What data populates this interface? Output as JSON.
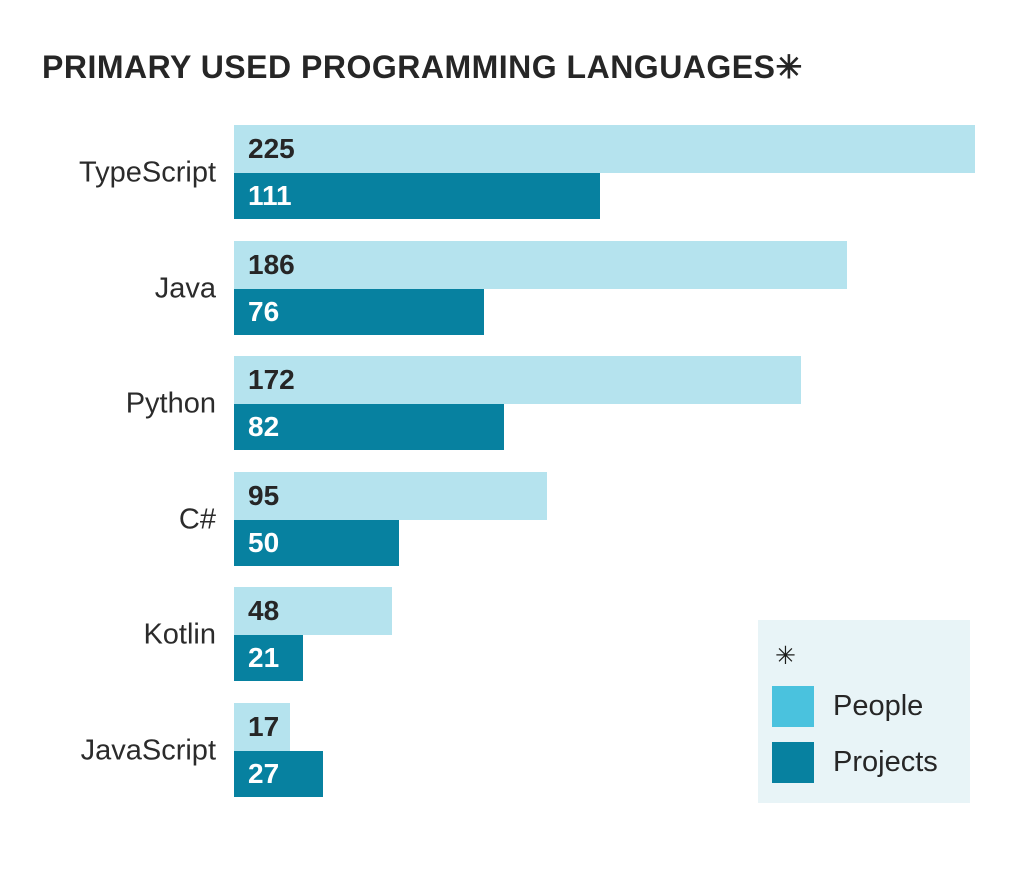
{
  "title": "PRIMARY USED PROGRAMMING LANGUAGES✳",
  "chart_data": {
    "type": "bar",
    "orientation": "horizontal",
    "title": "PRIMARY USED PROGRAMMING LANGUAGES✳",
    "categories": [
      "TypeScript",
      "Java",
      "Python",
      "C#",
      "Kotlin",
      "JavaScript"
    ],
    "series": [
      {
        "name": "People",
        "values": [
          225,
          186,
          172,
          95,
          48,
          17
        ]
      },
      {
        "name": "Projects",
        "values": [
          111,
          76,
          82,
          50,
          21,
          27
        ]
      }
    ],
    "xlim": [
      0,
      225
    ],
    "value_labels_shown": true,
    "grid": false,
    "legend_position": "bottom-right"
  },
  "legend": {
    "asterisk": "✳",
    "items": [
      {
        "label": "People",
        "color": "#4ac2de"
      },
      {
        "label": "Projects",
        "color": "#0781a0"
      }
    ]
  },
  "colors": {
    "people_bar": "#b5e3ee",
    "people_legend": "#4ac2de",
    "projects_bar": "#0781a0",
    "legend_bg": "#e8f4f7",
    "title_text": "#262626",
    "value_on_light": "#262626",
    "value_on_dark": "#ffffff",
    "background": "#ffffff"
  }
}
